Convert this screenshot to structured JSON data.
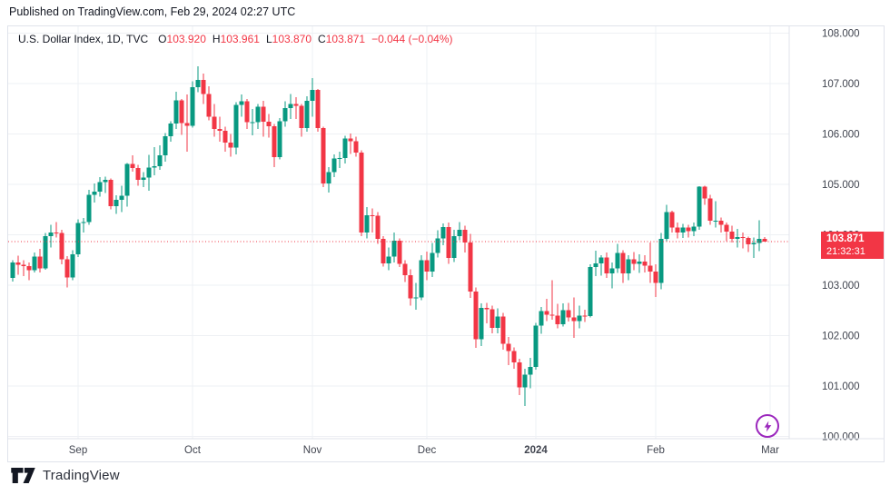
{
  "page": {
    "published_line": "Published on TradingView.com, Feb 29, 2024 02:27 UTC"
  },
  "legend": {
    "title": "U.S. Dollar Index, 1D, TVC",
    "ohlc": [
      {
        "label": "O",
        "value": "103.920"
      },
      {
        "label": "H",
        "value": "103.961"
      },
      {
        "label": "L",
        "value": "103.870"
      },
      {
        "label": "C",
        "value": "103.871"
      }
    ],
    "change": "−0.044 (−0.04%)"
  },
  "price_label": {
    "price": "103.871",
    "countdown": "21:32:31"
  },
  "footer": {
    "brand": "TradingView"
  },
  "icons": {
    "publish_button": "lightning-bolt",
    "brand_mark": "tradingview-logo"
  },
  "colors": {
    "up": "#089981",
    "down": "#f23645",
    "grid": "#eef0f4",
    "border": "#e0e3eb",
    "axis_text": "#40444f",
    "text": "#131722",
    "label_bg": "#f23645",
    "accent_purple": "#9b27bd"
  },
  "chart_data": {
    "type": "candlestick",
    "title": "U.S. Dollar Index",
    "interval": "1D",
    "exchange": "TVC",
    "ylim": [
      100,
      108
    ],
    "y_step": 1,
    "y_tick_decimals": 3,
    "grid": true,
    "last_price": 103.871,
    "x_labels": [
      {
        "label": "Sep",
        "index": 12
      },
      {
        "label": "Oct",
        "index": 33
      },
      {
        "label": "Nov",
        "index": 55
      },
      {
        "label": "Dec",
        "index": 76
      },
      {
        "label": "2024",
        "index": 96,
        "bold": true
      },
      {
        "label": "Feb",
        "index": 118
      },
      {
        "label": "Mar",
        "index": 139
      }
    ],
    "candles": [
      [
        103.15,
        103.5,
        103.08,
        103.45
      ],
      [
        103.45,
        103.59,
        103.21,
        103.41
      ],
      [
        103.41,
        103.5,
        103.18,
        103.38
      ],
      [
        103.38,
        103.45,
        103.1,
        103.3
      ],
      [
        103.3,
        103.65,
        103.26,
        103.57
      ],
      [
        103.57,
        103.72,
        103.26,
        103.34
      ],
      [
        103.34,
        104.04,
        103.31,
        103.98
      ],
      [
        103.98,
        104.2,
        103.75,
        104.05
      ],
      [
        104.05,
        104.26,
        103.95,
        104.04
      ],
      [
        104.04,
        104.1,
        103.42,
        103.52
      ],
      [
        103.52,
        103.58,
        102.96,
        103.16
      ],
      [
        103.16,
        103.7,
        103.1,
        103.62
      ],
      [
        103.62,
        104.31,
        103.56,
        104.24
      ],
      [
        104.24,
        104.34,
        104.05,
        104.26
      ],
      [
        104.26,
        104.9,
        104.2,
        104.8
      ],
      [
        104.8,
        105.02,
        104.64,
        104.86
      ],
      [
        104.86,
        105.15,
        104.76,
        105.05
      ],
      [
        105.05,
        105.16,
        104.83,
        105.09
      ],
      [
        105.09,
        105.12,
        104.51,
        104.57
      ],
      [
        104.57,
        104.79,
        104.42,
        104.7
      ],
      [
        104.7,
        104.98,
        104.45,
        104.78
      ],
      [
        104.78,
        105.43,
        104.56,
        105.41
      ],
      [
        105.41,
        105.58,
        105.26,
        105.33
      ],
      [
        105.33,
        105.39,
        104.98,
        105.09
      ],
      [
        105.09,
        105.25,
        104.95,
        105.14
      ],
      [
        105.14,
        105.59,
        104.88,
        105.34
      ],
      [
        105.34,
        105.74,
        105.18,
        105.36
      ],
      [
        105.36,
        105.78,
        105.29,
        105.58
      ],
      [
        105.58,
        106.02,
        105.45,
        105.96
      ],
      [
        105.96,
        106.26,
        105.85,
        106.21
      ],
      [
        106.21,
        106.84,
        106.1,
        106.67
      ],
      [
        106.67,
        106.7,
        105.99,
        106.22
      ],
      [
        106.22,
        106.79,
        105.65,
        106.17
      ],
      [
        106.17,
        107.05,
        106.13,
        106.93
      ],
      [
        106.93,
        107.35,
        106.83,
        107.08
      ],
      [
        107.08,
        107.2,
        106.6,
        106.8
      ],
      [
        106.8,
        106.95,
        106.27,
        106.35
      ],
      [
        106.35,
        106.6,
        105.95,
        106.1
      ],
      [
        106.1,
        106.35,
        105.85,
        106.07
      ],
      [
        106.07,
        106.15,
        105.65,
        105.83
      ],
      [
        105.83,
        106.0,
        105.55,
        105.73
      ],
      [
        105.73,
        106.63,
        105.6,
        106.58
      ],
      [
        106.58,
        106.79,
        106.35,
        106.65
      ],
      [
        106.65,
        106.7,
        106.1,
        106.24
      ],
      [
        106.24,
        106.5,
        105.98,
        106.24
      ],
      [
        106.24,
        106.6,
        106.1,
        106.54
      ],
      [
        106.54,
        106.66,
        105.95,
        106.25
      ],
      [
        106.25,
        106.4,
        105.93,
        106.16
      ],
      [
        106.16,
        106.2,
        105.35,
        105.54
      ],
      [
        105.54,
        106.32,
        105.5,
        106.26
      ],
      [
        106.26,
        106.65,
        106.15,
        106.52
      ],
      [
        106.52,
        106.8,
        106.3,
        106.6
      ],
      [
        106.6,
        106.73,
        106.3,
        106.56
      ],
      [
        106.56,
        106.6,
        105.95,
        106.12
      ],
      [
        106.12,
        106.75,
        106.05,
        106.66
      ],
      [
        106.66,
        107.11,
        106.35,
        106.88
      ],
      [
        106.88,
        106.9,
        106.05,
        106.12
      ],
      [
        106.12,
        106.15,
        104.95,
        105.02
      ],
      [
        105.02,
        105.35,
        104.84,
        105.25
      ],
      [
        105.25,
        105.6,
        105.15,
        105.52
      ],
      [
        105.52,
        105.65,
        105.33,
        105.53
      ],
      [
        105.53,
        105.97,
        105.42,
        105.91
      ],
      [
        105.91,
        106.01,
        105.61,
        105.86
      ],
      [
        105.86,
        105.95,
        105.55,
        105.63
      ],
      [
        105.63,
        105.68,
        103.98,
        104.05
      ],
      [
        104.05,
        104.55,
        103.93,
        104.39
      ],
      [
        104.39,
        104.53,
        104.05,
        104.38
      ],
      [
        104.38,
        104.45,
        103.82,
        103.92
      ],
      [
        103.92,
        103.98,
        103.37,
        103.44
      ],
      [
        103.44,
        103.75,
        103.3,
        103.57
      ],
      [
        103.57,
        104.05,
        103.45,
        103.89
      ],
      [
        103.89,
        103.93,
        103.36,
        103.43
      ],
      [
        103.43,
        103.5,
        103.07,
        103.2
      ],
      [
        103.2,
        103.32,
        102.6,
        102.74
      ],
      [
        102.74,
        103.05,
        102.52,
        102.76
      ],
      [
        102.76,
        103.6,
        102.71,
        103.5
      ],
      [
        103.5,
        103.67,
        103.1,
        103.27
      ],
      [
        103.27,
        103.84,
        103.17,
        103.64
      ],
      [
        103.64,
        104.09,
        103.55,
        103.93
      ],
      [
        103.93,
        104.23,
        103.8,
        104.16
      ],
      [
        104.16,
        104.25,
        103.43,
        103.54
      ],
      [
        103.54,
        104.1,
        103.46,
        103.98
      ],
      [
        103.98,
        104.26,
        103.9,
        104.1
      ],
      [
        104.1,
        104.18,
        103.65,
        103.85
      ],
      [
        103.85,
        104.02,
        102.75,
        102.88
      ],
      [
        102.88,
        102.96,
        101.76,
        101.93
      ],
      [
        101.93,
        102.64,
        101.8,
        102.55
      ],
      [
        102.55,
        102.65,
        102.25,
        102.53
      ],
      [
        102.53,
        102.6,
        102.05,
        102.16
      ],
      [
        102.16,
        102.54,
        102.05,
        102.38
      ],
      [
        102.38,
        102.45,
        101.72,
        101.84
      ],
      [
        101.84,
        101.98,
        101.42,
        101.7
      ],
      [
        101.7,
        101.77,
        101.35,
        101.47
      ],
      [
        101.47,
        101.54,
        100.82,
        100.98
      ],
      [
        100.98,
        101.35,
        100.61,
        101.23
      ],
      [
        101.23,
        101.56,
        100.96,
        101.38
      ],
      [
        101.38,
        102.26,
        101.33,
        102.2
      ],
      [
        102.2,
        102.57,
        102.04,
        102.49
      ],
      [
        102.49,
        102.73,
        102.29,
        102.42
      ],
      [
        102.42,
        103.1,
        102.32,
        102.4
      ],
      [
        102.4,
        102.63,
        102.15,
        102.23
      ],
      [
        102.23,
        102.64,
        102.18,
        102.51
      ],
      [
        102.51,
        102.65,
        102.28,
        102.36
      ],
      [
        102.36,
        102.76,
        101.96,
        102.29
      ],
      [
        102.29,
        102.6,
        102.15,
        102.4
      ],
      [
        102.4,
        102.52,
        102.27,
        102.39
      ],
      [
        102.39,
        103.42,
        102.36,
        103.36
      ],
      [
        103.36,
        103.69,
        103.18,
        103.44
      ],
      [
        103.44,
        103.6,
        103.19,
        103.55
      ],
      [
        103.55,
        103.65,
        103.15,
        103.24
      ],
      [
        103.24,
        103.45,
        102.94,
        103.34
      ],
      [
        103.34,
        103.82,
        103.25,
        103.64
      ],
      [
        103.64,
        103.7,
        103.05,
        103.24
      ],
      [
        103.24,
        103.6,
        103.1,
        103.52
      ],
      [
        103.52,
        103.66,
        103.3,
        103.43
      ],
      [
        103.43,
        103.62,
        103.25,
        103.47
      ],
      [
        103.47,
        103.6,
        103.26,
        103.39
      ],
      [
        103.39,
        103.85,
        103.05,
        103.27
      ],
      [
        103.27,
        103.42,
        102.77,
        103.05
      ],
      [
        103.05,
        104.04,
        102.92,
        103.92
      ],
      [
        103.92,
        104.6,
        103.87,
        104.45
      ],
      [
        104.45,
        104.48,
        104.05,
        104.15
      ],
      [
        104.15,
        104.25,
        103.93,
        104.05
      ],
      [
        104.05,
        104.22,
        103.94,
        104.15
      ],
      [
        104.15,
        104.2,
        103.95,
        104.08
      ],
      [
        104.08,
        104.25,
        103.98,
        104.17
      ],
      [
        104.17,
        104.97,
        104.1,
        104.96
      ],
      [
        104.96,
        104.98,
        104.6,
        104.72
      ],
      [
        104.72,
        104.8,
        104.2,
        104.28
      ],
      [
        104.28,
        104.67,
        104.15,
        104.28
      ],
      [
        104.28,
        104.35,
        104.05,
        104.2
      ],
      [
        104.2,
        104.25,
        103.88,
        104.07
      ],
      [
        104.07,
        104.18,
        103.85,
        103.92
      ],
      [
        103.92,
        104.12,
        103.75,
        103.96
      ],
      [
        103.96,
        104.05,
        103.73,
        103.94
      ],
      [
        103.94,
        103.97,
        103.66,
        103.81
      ],
      [
        103.81,
        103.95,
        103.54,
        103.84
      ],
      [
        103.84,
        104.29,
        103.68,
        103.92
      ],
      [
        103.92,
        103.961,
        103.87,
        103.871
      ]
    ]
  }
}
